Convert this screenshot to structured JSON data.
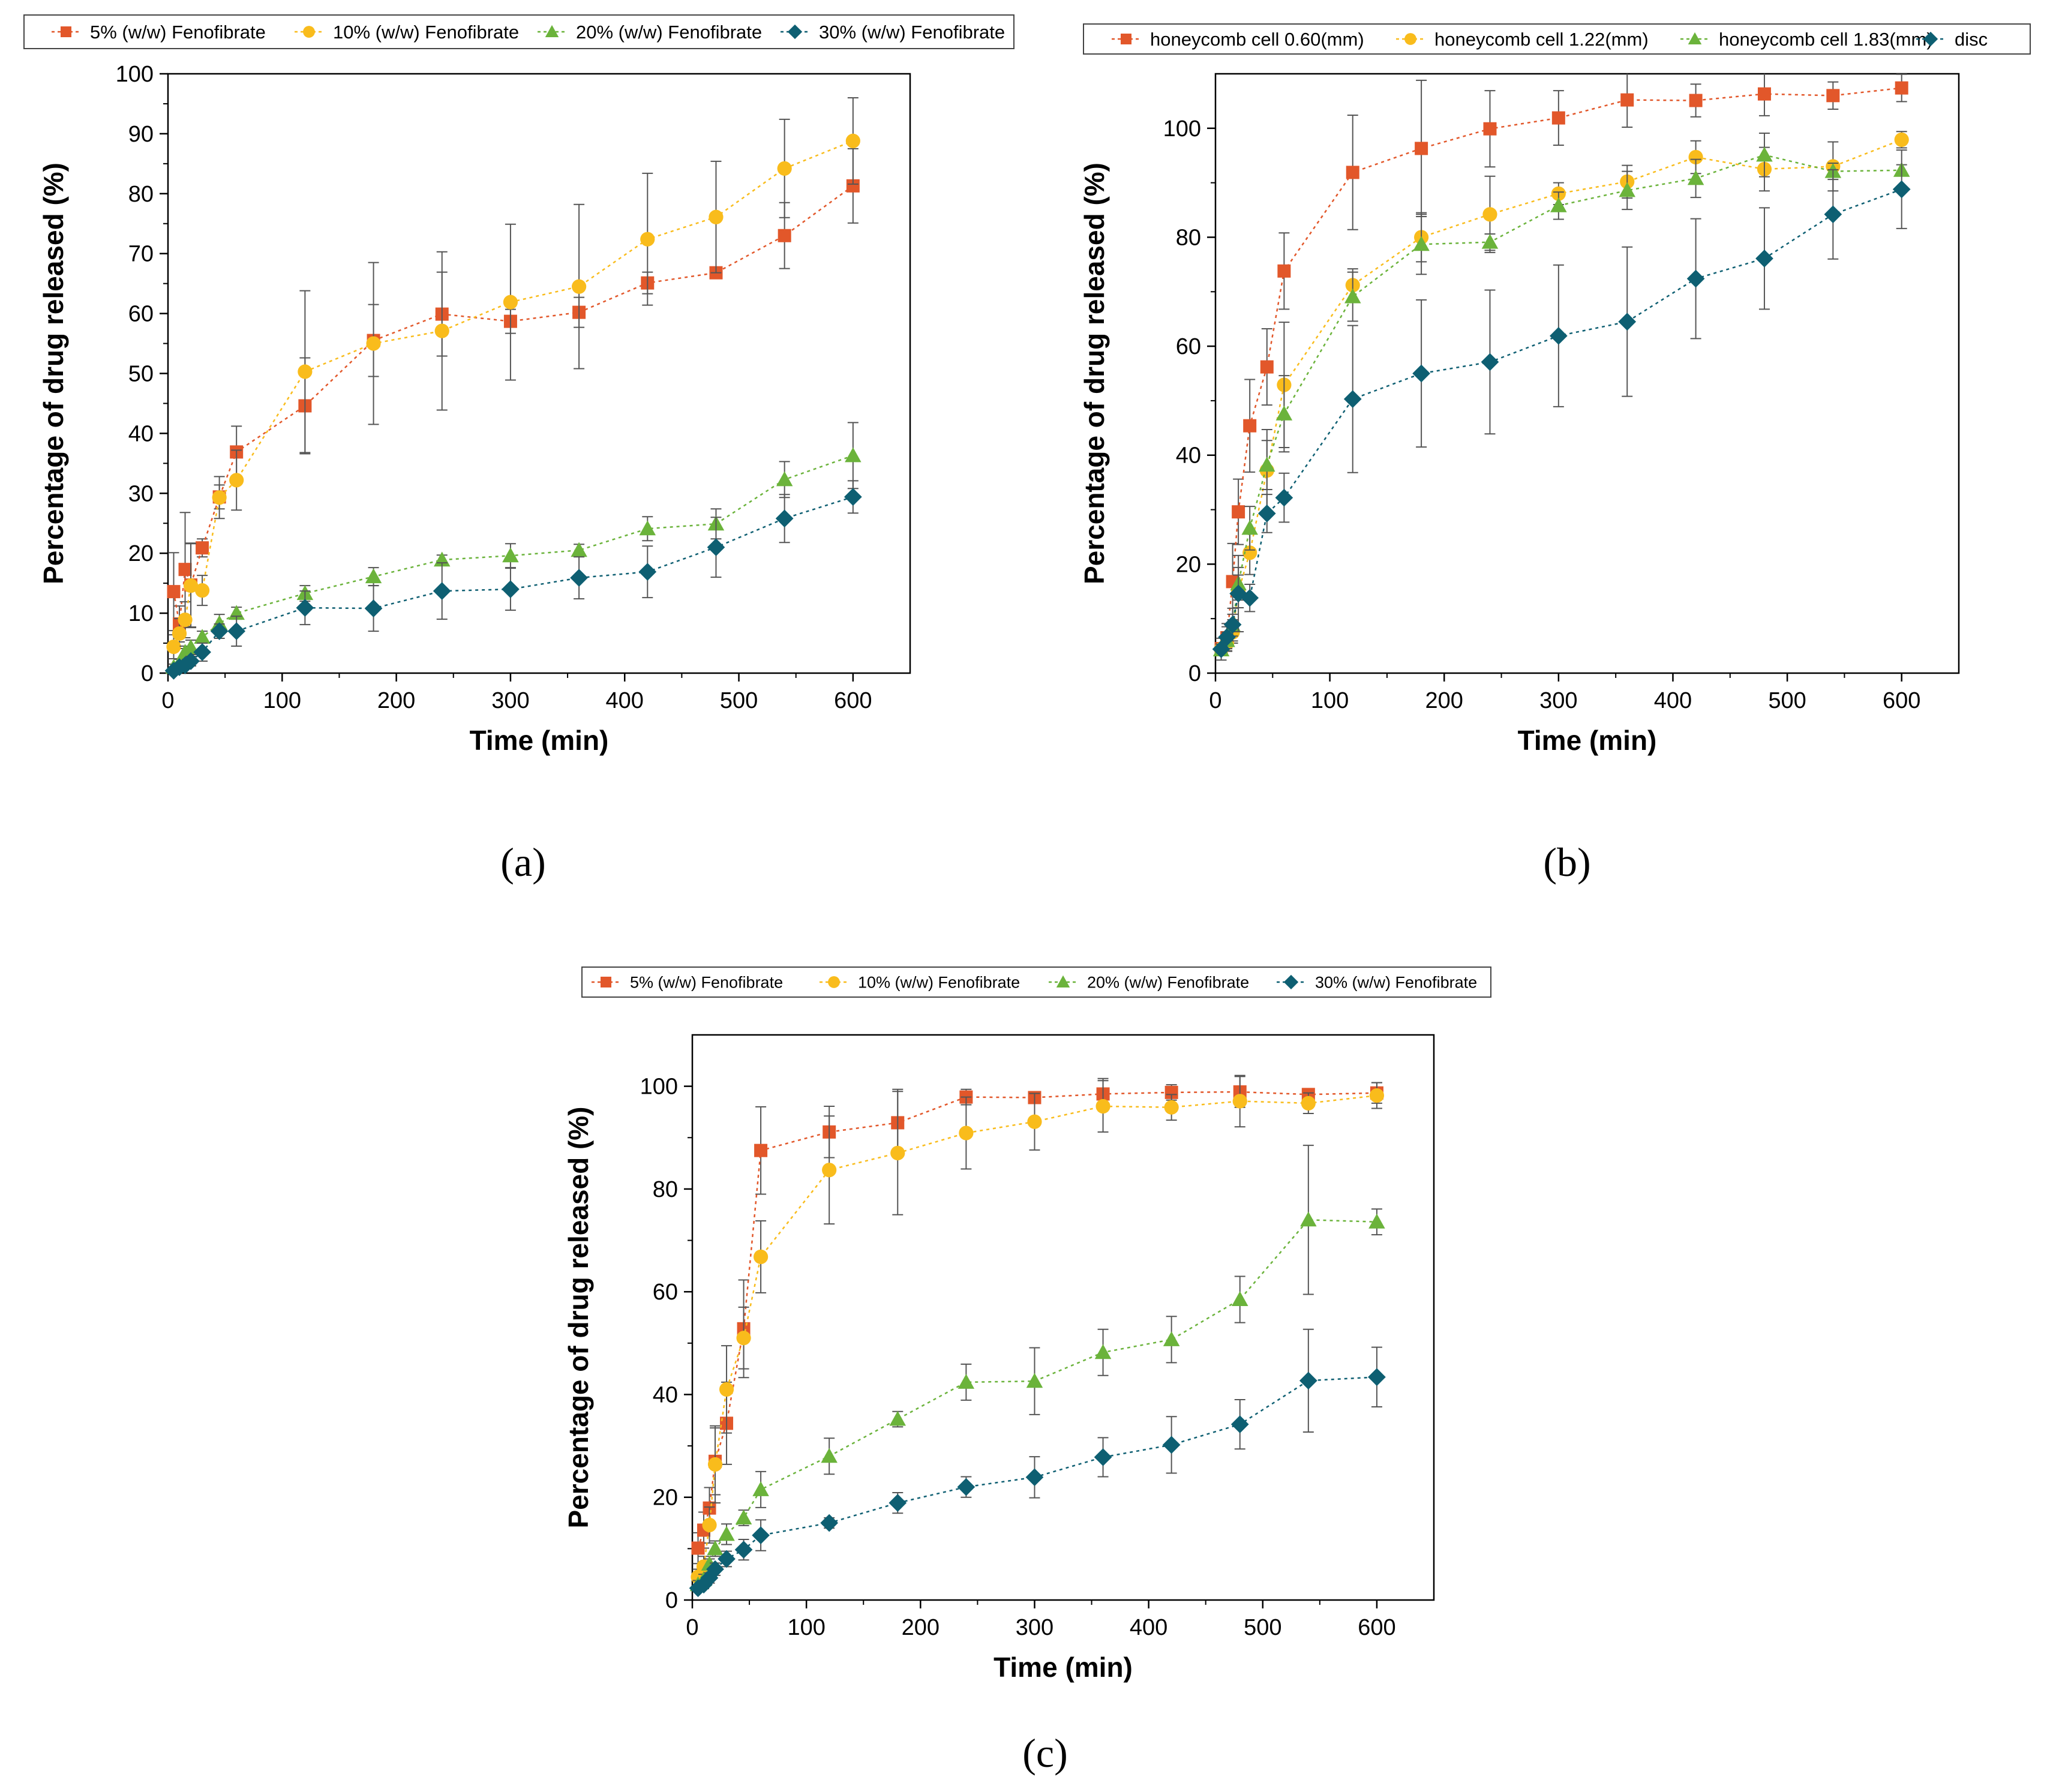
{
  "colors": {
    "orange": "#E2572A",
    "yellow": "#F9BC1C",
    "green": "#6BB33B",
    "teal": "#0E5F72",
    "errorbar": "#555555",
    "axis": "#000000",
    "legend_border": "#444444"
  },
  "captions": [
    "(a)",
    "(b)",
    "(c)"
  ],
  "chart_data": [
    {
      "type": "scatter",
      "xlabel": "Time (min)",
      "ylabel": "Percentage of drug released (%)",
      "xlim": [
        0,
        650
      ],
      "ylim": [
        0,
        100
      ],
      "xticks": [
        0,
        100,
        200,
        300,
        400,
        500,
        600
      ],
      "yticks": [
        0,
        10,
        20,
        30,
        40,
        50,
        60,
        70,
        80,
        90,
        100
      ],
      "legend_position": "top",
      "series": [
        {
          "name": "5% (w/w) Fenofibrate",
          "marker": "square",
          "color": "#E2572A",
          "x": [
            5,
            10,
            15,
            20,
            30,
            45,
            60,
            120,
            180,
            240,
            300,
            360,
            420,
            480,
            540,
            600
          ],
          "y": [
            13.6,
            8.2,
            17.3,
            14.7,
            20.9,
            29.4,
            36.9,
            44.6,
            55.5,
            59.9,
            58.7,
            60.2,
            65.1,
            66.8,
            73.0,
            81.3
          ],
          "err": [
            6.5,
            3.0,
            9.5,
            7.0,
            1.5,
            2.0,
            4.3,
            8.0,
            6.0,
            7.0,
            2.0,
            2.5,
            1.8,
            0.5,
            5.5,
            6.2
          ]
        },
        {
          "name": "10% (w/w) Fenofibrate",
          "marker": "circle",
          "color": "#F9BC1C",
          "x": [
            5,
            10,
            15,
            20,
            30,
            45,
            60,
            120,
            180,
            240,
            300,
            360,
            420,
            480,
            540,
            600
          ],
          "y": [
            4.4,
            6.6,
            8.9,
            14.6,
            13.8,
            29.3,
            32.2,
            50.3,
            55.0,
            57.1,
            61.9,
            64.5,
            72.4,
            76.1,
            84.2,
            88.8
          ],
          "err": [
            2.0,
            2.5,
            3.0,
            7.0,
            2.5,
            3.5,
            5.0,
            13.5,
            13.5,
            13.2,
            13.0,
            13.7,
            11.0,
            9.3,
            8.2,
            7.2
          ]
        },
        {
          "name": "20% (w/w) Fenofibrate",
          "marker": "triangle",
          "color": "#6BB33B",
          "x": [
            5,
            10,
            15,
            20,
            30,
            45,
            60,
            120,
            180,
            240,
            300,
            360,
            420,
            480,
            540,
            600
          ],
          "y": [
            1.0,
            1.7,
            3.5,
            4.3,
            6.0,
            8.3,
            10.0,
            13.3,
            16.1,
            18.9,
            19.6,
            20.5,
            24.1,
            24.9,
            32.3,
            36.3
          ],
          "err": [
            0.5,
            0.6,
            1.0,
            1.2,
            1.0,
            1.5,
            1.0,
            1.3,
            1.5,
            0.8,
            2.0,
            1.0,
            2.0,
            2.5,
            3.0,
            5.5
          ]
        },
        {
          "name": "30% (w/w) Fenofibrate",
          "marker": "diamond",
          "color": "#0E5F72",
          "x": [
            5,
            10,
            15,
            20,
            30,
            45,
            60,
            120,
            180,
            240,
            300,
            360,
            420,
            480,
            540,
            600
          ],
          "y": [
            0.4,
            1.0,
            1.3,
            2.0,
            3.5,
            7.0,
            7.0,
            10.9,
            10.8,
            13.7,
            14.0,
            15.9,
            16.9,
            21.0,
            25.8,
            29.4
          ],
          "err": [
            0.3,
            0.5,
            0.6,
            0.8,
            1.5,
            1.2,
            2.5,
            2.8,
            3.8,
            4.7,
            3.5,
            3.5,
            4.3,
            5.0,
            4.0,
            2.7
          ]
        }
      ]
    },
    {
      "type": "scatter",
      "xlabel": "Time (min)",
      "ylabel": "Percentage of drug released (%)",
      "xlim": [
        0,
        650
      ],
      "ylim": [
        0,
        110
      ],
      "xticks": [
        0,
        100,
        200,
        300,
        400,
        500,
        600
      ],
      "yticks": [
        0,
        20,
        40,
        60,
        80,
        100
      ],
      "legend_position": "top",
      "series": [
        {
          "name": "honeycomb cell 0.60(mm)",
          "marker": "square",
          "color": "#E2572A",
          "x": [
            5,
            10,
            15,
            20,
            30,
            45,
            60,
            120,
            180,
            240,
            300,
            360,
            420,
            480,
            540,
            600
          ],
          "y": [
            4.5,
            6.5,
            16.8,
            29.6,
            45.4,
            56.2,
            73.8,
            91.9,
            96.3,
            99.9,
            101.9,
            105.2,
            105.1,
            106.3,
            106.0,
            107.4
          ],
          "err": [
            1.0,
            2.0,
            7.0,
            6.0,
            8.5,
            7.0,
            7.0,
            10.5,
            12.5,
            7.0,
            5.0,
            5.0,
            3.0,
            4.0,
            2.5,
            2.5
          ]
        },
        {
          "name": "honeycomb cell 1.22(mm)",
          "marker": "circle",
          "color": "#F9BC1C",
          "x": [
            5,
            10,
            15,
            20,
            30,
            45,
            60,
            120,
            180,
            240,
            300,
            360,
            420,
            480,
            540,
            600
          ],
          "y": [
            4.4,
            5.5,
            7.5,
            15.0,
            22.1,
            37.2,
            52.9,
            71.2,
            80.0,
            84.2,
            88.0,
            90.2,
            94.7,
            92.5,
            93.0,
            97.9
          ],
          "err": [
            1.0,
            1.5,
            2.0,
            3.0,
            4.0,
            7.5,
            11.5,
            3.0,
            4.5,
            7.0,
            2.0,
            3.0,
            3.0,
            4.0,
            4.5,
            1.5
          ]
        },
        {
          "name": "honeycomb cell 1.83(mm)",
          "marker": "triangle",
          "color": "#6BB33B",
          "x": [
            5,
            10,
            15,
            20,
            30,
            45,
            60,
            120,
            180,
            240,
            300,
            360,
            420,
            480,
            540,
            600
          ],
          "y": [
            4.3,
            6.0,
            8.8,
            16.4,
            26.6,
            38.2,
            47.6,
            69.1,
            78.7,
            79.1,
            85.8,
            88.6,
            90.8,
            95.1,
            92.1,
            92.3
          ],
          "err": [
            1.0,
            1.5,
            2.0,
            3.0,
            4.0,
            4.5,
            7.0,
            4.5,
            5.5,
            1.5,
            2.5,
            3.5,
            3.5,
            4.0,
            1.5,
            1.0
          ]
        },
        {
          "name": "disc",
          "marker": "diamond",
          "color": "#0E5F72",
          "x": [
            5,
            10,
            15,
            20,
            30,
            45,
            60,
            120,
            180,
            240,
            300,
            360,
            420,
            480,
            540,
            600
          ],
          "y": [
            4.4,
            6.6,
            8.9,
            14.6,
            13.8,
            29.3,
            32.2,
            50.3,
            55.0,
            57.1,
            61.9,
            64.5,
            72.4,
            76.1,
            84.2,
            88.8
          ],
          "err": [
            2.0,
            2.5,
            3.0,
            7.0,
            2.5,
            3.5,
            4.5,
            13.5,
            13.5,
            13.2,
            13.0,
            13.7,
            11.0,
            9.3,
            8.2,
            7.2
          ]
        }
      ]
    },
    {
      "type": "scatter",
      "xlabel": "Time (min)",
      "ylabel": "Percentage of drug released (%)",
      "xlim": [
        0,
        650
      ],
      "ylim": [
        0,
        110
      ],
      "xticks": [
        0,
        100,
        200,
        300,
        400,
        500,
        600
      ],
      "yticks": [
        0,
        20,
        40,
        60,
        80,
        100
      ],
      "legend_position": "top",
      "series": [
        {
          "name": "5% (w/w) Fenofibrate",
          "marker": "square",
          "color": "#E2572A",
          "x": [
            5,
            10,
            15,
            20,
            30,
            45,
            60,
            120,
            180,
            240,
            300,
            360,
            420,
            480,
            540,
            600
          ],
          "y": [
            10.1,
            13.6,
            17.9,
            27.0,
            34.4,
            52.8,
            87.5,
            91.1,
            92.9,
            97.9,
            97.8,
            98.5,
            98.8,
            98.9,
            98.4,
            98.7
          ],
          "err": [
            3.0,
            3.5,
            4.0,
            6.5,
            8.0,
            9.5,
            8.5,
            5.0,
            6.5,
            1.5,
            1.0,
            3.0,
            1.5,
            3.0,
            1.0,
            2.0
          ]
        },
        {
          "name": "10% (w/w) Fenofibrate",
          "marker": "circle",
          "color": "#F9BC1C",
          "x": [
            5,
            10,
            15,
            20,
            30,
            45,
            60,
            120,
            180,
            240,
            300,
            360,
            420,
            480,
            540,
            600
          ],
          "y": [
            4.5,
            6.5,
            14.6,
            26.4,
            41.0,
            51.0,
            66.8,
            83.7,
            87.0,
            90.9,
            93.1,
            96.1,
            95.9,
            97.1,
            96.7,
            98.2
          ],
          "err": [
            1.5,
            2.0,
            3.5,
            7.5,
            8.5,
            6.0,
            7.0,
            10.5,
            12.0,
            7.0,
            5.5,
            5.0,
            2.5,
            5.0,
            2.0,
            2.5
          ]
        },
        {
          "name": "20% (w/w) Fenofibrate",
          "marker": "triangle",
          "color": "#6BB33B",
          "x": [
            5,
            10,
            15,
            20,
            30,
            45,
            60,
            120,
            180,
            240,
            300,
            360,
            420,
            480,
            540,
            600
          ],
          "y": [
            3.0,
            4.0,
            7.0,
            10.0,
            12.8,
            16.0,
            21.5,
            28.0,
            35.2,
            42.4,
            42.6,
            48.2,
            50.7,
            58.5,
            74.0,
            73.6
          ],
          "err": [
            0.8,
            1.0,
            1.0,
            1.5,
            2.0,
            1.5,
            3.5,
            3.5,
            1.5,
            3.5,
            6.5,
            4.5,
            4.5,
            4.5,
            14.5,
            2.5
          ]
        },
        {
          "name": "30% (w/w) Fenofibrate",
          "marker": "diamond",
          "color": "#0E5F72",
          "x": [
            5,
            10,
            15,
            20,
            30,
            45,
            60,
            120,
            180,
            240,
            300,
            360,
            420,
            480,
            540,
            600
          ],
          "y": [
            2.3,
            3.0,
            4.3,
            6.0,
            8.0,
            9.8,
            12.6,
            15.0,
            18.9,
            22.0,
            23.9,
            27.8,
            30.2,
            34.2,
            42.7,
            43.4
          ],
          "err": [
            0.5,
            0.8,
            1.0,
            1.2,
            1.5,
            2.0,
            3.0,
            1.0,
            2.0,
            2.0,
            4.0,
            3.8,
            5.5,
            4.8,
            10.0,
            5.8
          ]
        }
      ]
    }
  ]
}
